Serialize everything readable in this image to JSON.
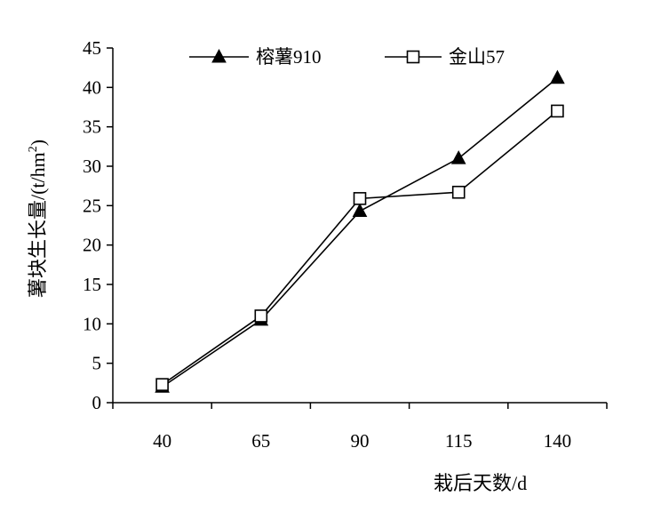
{
  "chart_data": {
    "type": "line",
    "title": "",
    "xlabel": "栽后天数/d",
    "ylabel": "薯块生长量/(t/hm",
    "ylabel_superscript": "2",
    "ylabel_close": ")",
    "categories": [
      "40",
      "65",
      "90",
      "115",
      "140"
    ],
    "ylim": [
      0,
      45
    ],
    "yticks": [
      0,
      5,
      10,
      15,
      20,
      25,
      30,
      35,
      40,
      45
    ],
    "grid": false,
    "legend_position": "top",
    "series": [
      {
        "name": "榕薯910",
        "marker": "filled-triangle",
        "values": [
          2.0,
          10.5,
          24.3,
          31.0,
          41.2
        ]
      },
      {
        "name": "金山57",
        "marker": "open-square",
        "values": [
          2.3,
          11.0,
          25.9,
          26.7,
          37.0
        ]
      }
    ],
    "colors": {
      "line": "#000000",
      "background": "#ffffff"
    }
  }
}
